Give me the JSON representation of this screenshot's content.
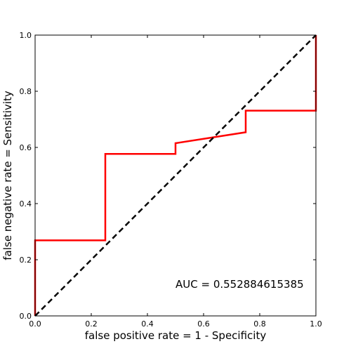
{
  "chart_data": {
    "type": "line",
    "title": "",
    "xlabel": "false positive rate = 1 - Specificity",
    "ylabel": "false negative rate = Sensitivity",
    "xlim": [
      0,
      1
    ],
    "ylim": [
      0,
      1
    ],
    "x_ticks": [
      "0.0",
      "0.2",
      "0.4",
      "0.6",
      "0.8",
      "1.0"
    ],
    "y_ticks": [
      "0.0",
      "0.2",
      "0.4",
      "0.6",
      "0.8",
      "1.0"
    ],
    "grid": false,
    "series": [
      {
        "color": "#ff0000",
        "style": "solid",
        "x": [
          0,
          0,
          0.25,
          0.25,
          0.5,
          0.5,
          0.75,
          0.75,
          1.0,
          1.0
        ],
        "y": [
          0,
          0.269,
          0.269,
          0.577,
          0.577,
          0.615,
          0.654,
          0.731,
          0.731,
          1.0
        ]
      },
      {
        "color": "#000000",
        "style": "dashed",
        "x": [
          0,
          1
        ],
        "y": [
          0,
          1
        ]
      }
    ],
    "annotations": [
      {
        "text": "AUC = 0.552884615385",
        "x": 0.5,
        "y": 0.1
      }
    ]
  }
}
